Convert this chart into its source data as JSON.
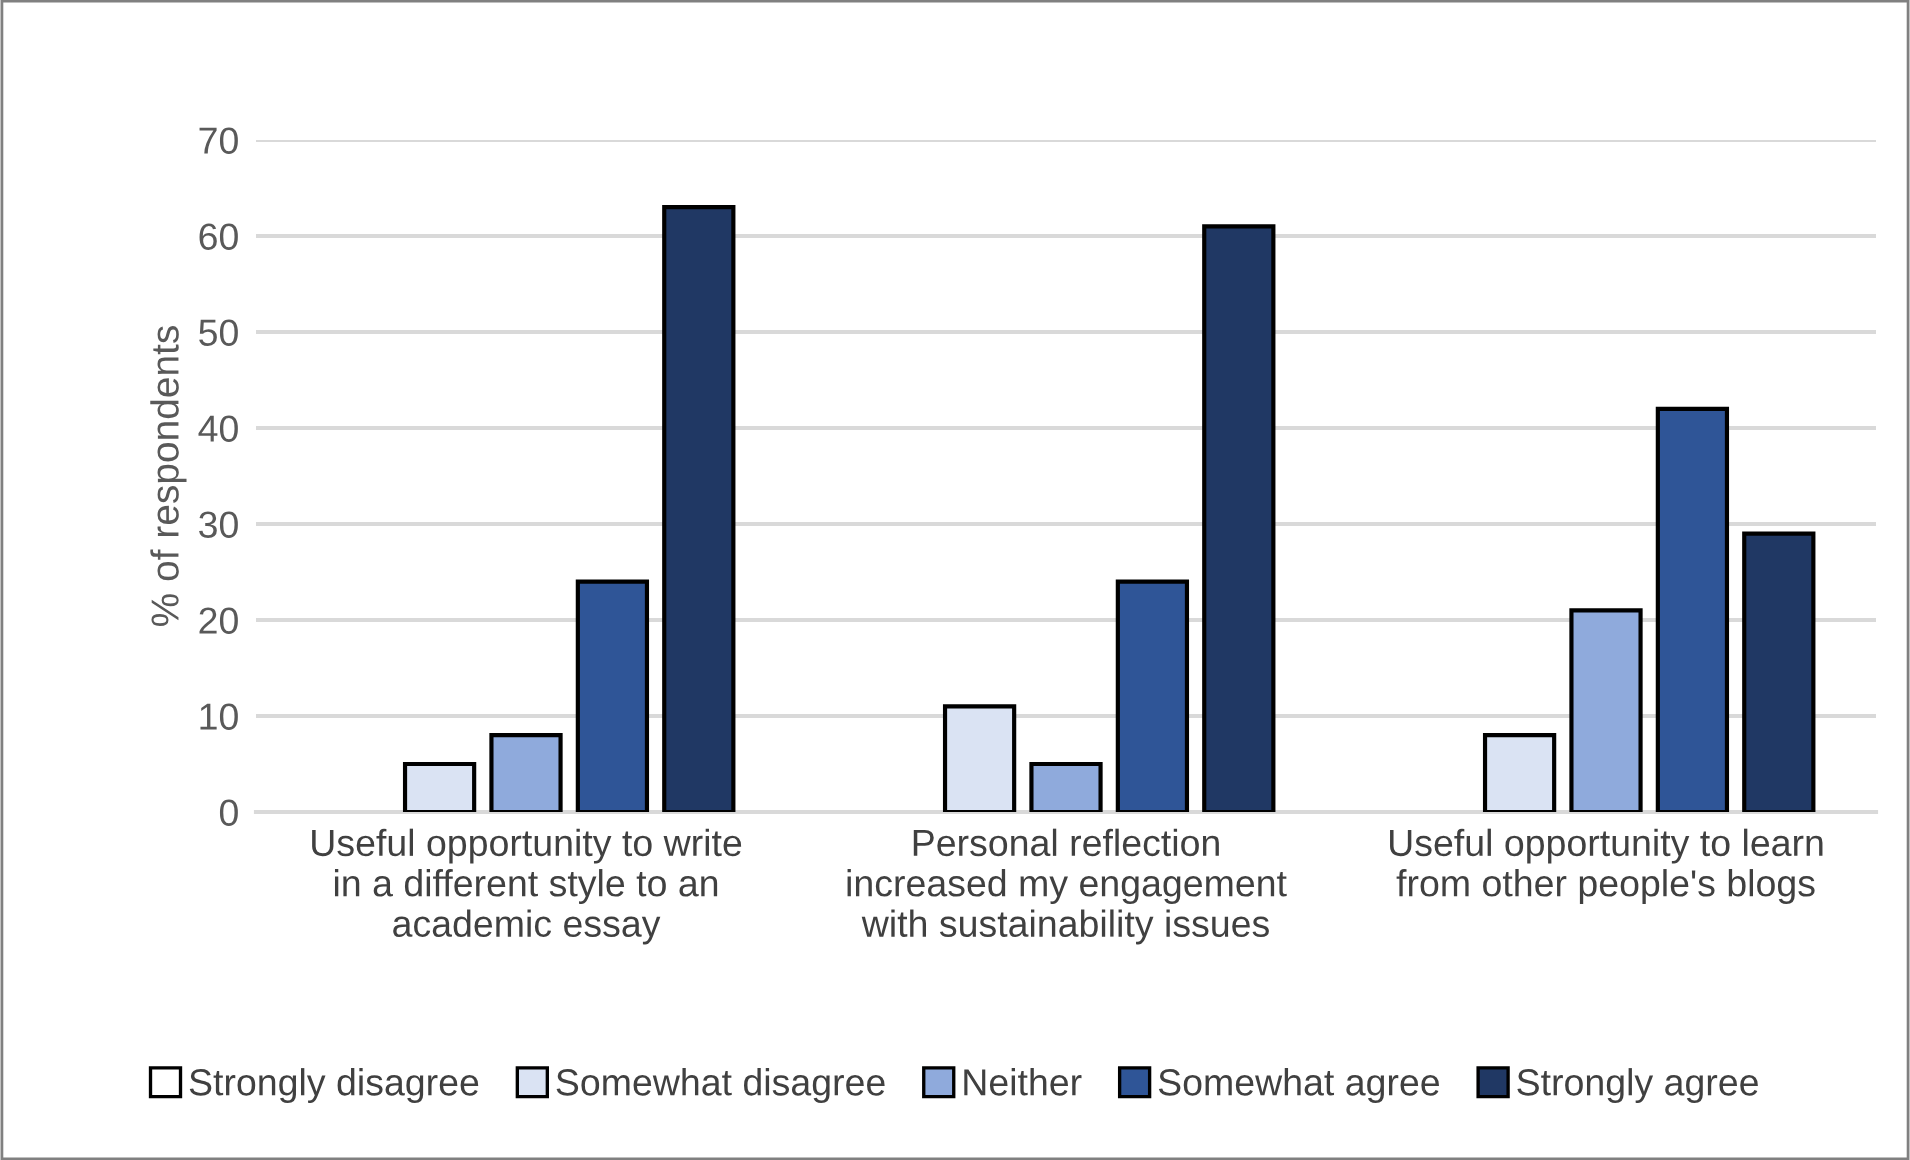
{
  "chart_data": {
    "type": "bar",
    "ylabel": "% of respondents",
    "categories": [
      "Useful opportunity to write\nin a different style to an\nacademic essay",
      "Personal reflection\nincreased my engagement\nwith sustainability issues",
      "Useful opportunity to learn\nfrom other people's blogs"
    ],
    "series": [
      {
        "name": "Strongly disagree",
        "color": "#ffffff",
        "values": [
          0,
          0,
          0
        ]
      },
      {
        "name": "Somewhat disagree",
        "color": "#dae3f3",
        "values": [
          5,
          11,
          8
        ]
      },
      {
        "name": "Neither",
        "color": "#8faadc",
        "values": [
          8,
          5,
          21
        ]
      },
      {
        "name": "Somewhat agree",
        "color": "#2f5597",
        "values": [
          24,
          24,
          42
        ]
      },
      {
        "name": "Strongly agree",
        "color": "#203864",
        "values": [
          63,
          61,
          29
        ]
      }
    ],
    "ylim": [
      0,
      70
    ],
    "yticks": [
      0,
      10,
      20,
      30,
      40,
      50,
      60,
      70
    ],
    "grid": "y",
    "legend": "bottom"
  }
}
